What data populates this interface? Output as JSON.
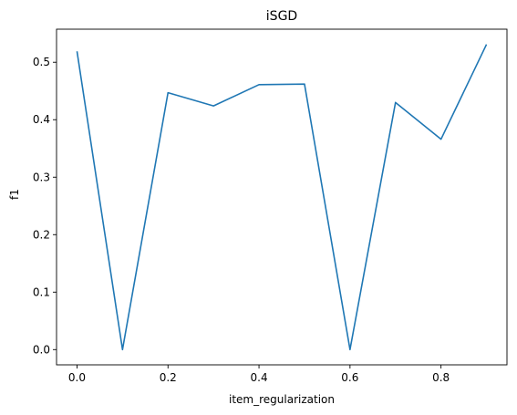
{
  "chart_data": {
    "type": "line",
    "title": "iSGD",
    "xlabel": "item_regularization",
    "ylabel": "f1",
    "x": [
      0.0,
      0.1,
      0.2,
      0.3,
      0.4,
      0.5,
      0.6,
      0.7,
      0.8,
      0.9
    ],
    "series": [
      {
        "values": [
          0.519,
          0.0,
          0.447,
          0.424,
          0.461,
          0.462,
          0.0,
          0.43,
          0.366,
          0.531
        ]
      }
    ],
    "xlim": [
      -0.045,
      0.945
    ],
    "ylim": [
      -0.0265,
      0.5575
    ],
    "xticks": [
      0.0,
      0.2,
      0.4,
      0.6,
      0.8
    ],
    "xtick_labels": [
      "0.0",
      "0.2",
      "0.4",
      "0.6",
      "0.8"
    ],
    "yticks": [
      0.0,
      0.1,
      0.2,
      0.3,
      0.4,
      0.5
    ],
    "ytick_labels": [
      "0.0",
      "0.1",
      "0.2",
      "0.3",
      "0.4",
      "0.5"
    ],
    "grid": false,
    "line_color": "#1f77b4"
  }
}
